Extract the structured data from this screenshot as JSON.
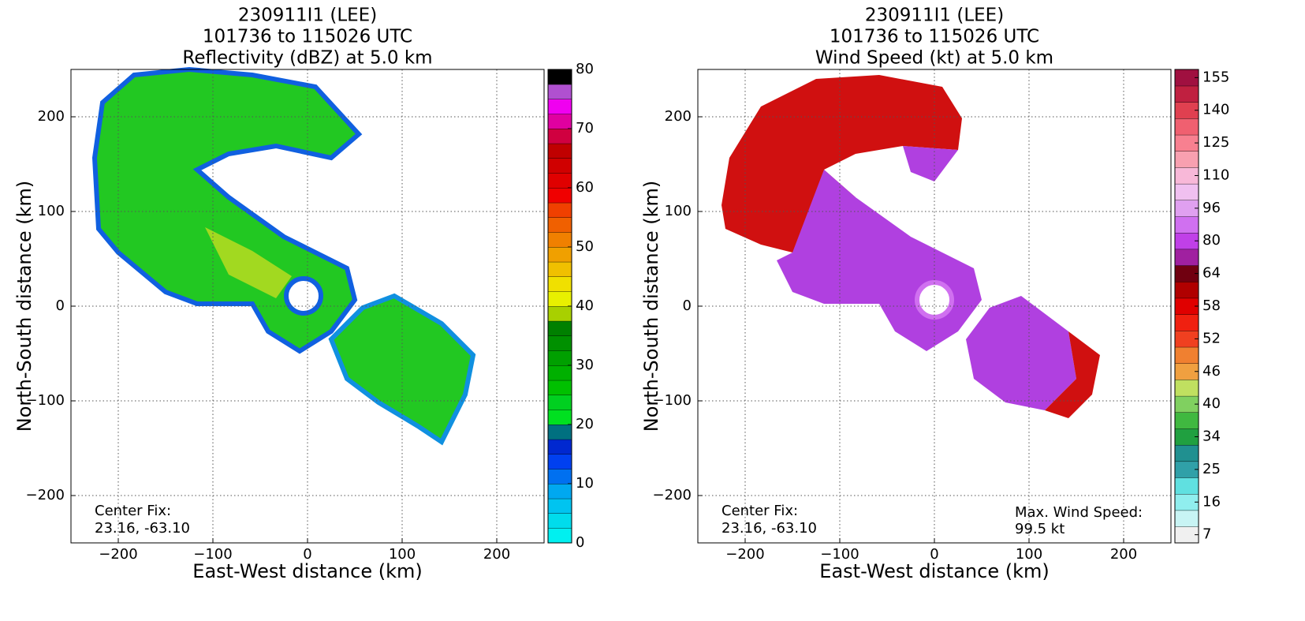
{
  "chart_data": [
    {
      "type": "heatmap",
      "title": [
        "230911I1 (LEE)",
        "101736 to 115026 UTC",
        "Reflectivity (dBZ) at 5.0 km"
      ],
      "xlabel": "East-West distance (km)",
      "ylabel": "North-South distance (km)",
      "xlim": [
        -250,
        250
      ],
      "ylim": [
        -250,
        250
      ],
      "xticks": [
        {
          "value": -200,
          "label": "−200"
        },
        {
          "value": -100,
          "label": "−100"
        },
        0,
        100,
        200
      ],
      "yticks": [
        {
          "value": -200,
          "label": "−200"
        },
        {
          "value": -100,
          "label": "−100"
        },
        0,
        100,
        200
      ],
      "grid": true,
      "center_fix": [
        "Center Fix:",
        "23.16, -63.10"
      ],
      "colorbar": {
        "lim": [
          0,
          80
        ],
        "ticks": [
          0,
          10,
          20,
          30,
          40,
          50,
          60,
          70,
          80
        ],
        "colors": [
          "#00f0f0",
          "#00dcec",
          "#00c4f0",
          "#00a8f0",
          "#0070f0",
          "#0040f0",
          "#0028d0",
          "#007080",
          "#00e020",
          "#00d020",
          "#00c000",
          "#00b000",
          "#00a000",
          "#009000",
          "#008000",
          "#a8d000",
          "#e8f000",
          "#f0e000",
          "#f0c000",
          "#f0a000",
          "#f08000",
          "#f06000",
          "#f04000",
          "#f00000",
          "#e00000",
          "#d00000",
          "#c00000",
          "#d00040",
          "#e000a0",
          "#f000f0",
          "#b050d0",
          "#000000"
        ]
      }
    },
    {
      "type": "heatmap",
      "title": [
        "230911I1 (LEE)",
        "101736 to 115026 UTC",
        "Wind Speed (kt) at 5.0 km"
      ],
      "xlabel": "East-West distance (km)",
      "ylabel": "North-South distance (km)",
      "xlim": [
        -250,
        250
      ],
      "ylim": [
        -250,
        250
      ],
      "xticks": [
        {
          "value": -200,
          "label": "−200"
        },
        {
          "value": -100,
          "label": "−100"
        },
        0,
        100,
        200
      ],
      "yticks": [
        {
          "value": -200,
          "label": "−200"
        },
        {
          "value": -100,
          "label": "−100"
        },
        0,
        100,
        200
      ],
      "grid": true,
      "center_fix": [
        "Center Fix:",
        "23.16, -63.10"
      ],
      "max_wind": [
        "Max. Wind Speed:",
        "99.5 kt"
      ],
      "colorbar": {
        "ticks": [
          7,
          16,
          25,
          34,
          40,
          46,
          52,
          58,
          64,
          80,
          96,
          110,
          125,
          140,
          155
        ],
        "colors": [
          "#f0f0f0",
          "#c8f4f4",
          "#90eeee",
          "#60e0e0",
          "#30a0a8",
          "#209090",
          "#20a040",
          "#40b840",
          "#80d060",
          "#c0e060",
          "#f0a040",
          "#f08030",
          "#f04020",
          "#f02010",
          "#e00000",
          "#b00000",
          "#700010",
          "#a020a0",
          "#c040e8",
          "#d070f0",
          "#e0a0f0",
          "#f0c0f0",
          "#f8b8d8",
          "#f8a0b0",
          "#f88090",
          "#f06070",
          "#e04050",
          "#c02040",
          "#a01040"
        ]
      }
    }
  ]
}
